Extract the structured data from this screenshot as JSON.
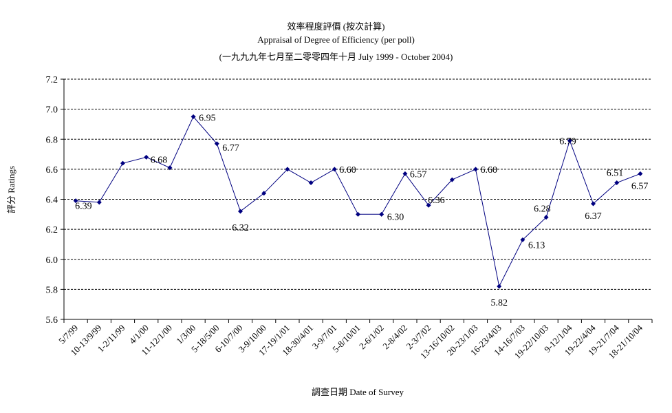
{
  "chart_data": {
    "type": "line",
    "title_zh": "效率程度評價 (按次計算)",
    "title_en": "Appraisal of Degree of Efficiency (per poll)",
    "subtitle": "(一九九九年七月至二零零四年十月 July 1999 - October 2004)",
    "xlabel": "調查日期 Date of Survey",
    "ylabel": "評分 Ratings",
    "ylim": [
      5.6,
      7.2
    ],
    "yticks": [
      "5.6",
      "5.8",
      "6.0",
      "6.2",
      "6.4",
      "6.6",
      "6.8",
      "7.0",
      "7.2"
    ],
    "grid": true,
    "line_color": "#000080",
    "categories": [
      "5/7/99",
      "10-13/9/99",
      "1-2/11/99",
      "4/1/00",
      "11-12/1/00",
      "1/3/00",
      "5-18/5/00",
      "6-10/7/00",
      "3-9/10/00",
      "17-19/1/01",
      "18-30/4/01",
      "3-9/7/01",
      "5-8/10/01",
      "2-6/1/02",
      "2-8/4/02",
      "2-3/7/02",
      "13-16/10/02",
      "20-23/1/03",
      "16-23/4/03",
      "14-16/7/03",
      "19-22/10/03",
      "9-12/1/04",
      "19-22/4/04",
      "19-21/7/04",
      "18-21/10/04"
    ],
    "values": [
      6.39,
      6.38,
      6.64,
      6.68,
      6.61,
      6.95,
      6.77,
      6.32,
      6.44,
      6.6,
      6.51,
      6.6,
      6.3,
      6.3,
      6.57,
      6.36,
      6.53,
      6.6,
      5.82,
      6.13,
      6.28,
      6.79,
      6.37,
      6.51,
      6.57
    ],
    "data_labels": [
      "6.39",
      "",
      "",
      "6.68",
      "",
      "6.95",
      "6.77",
      "6.32",
      "",
      "",
      "",
      "6.60",
      "",
      "6.30",
      "6.57",
      "6.36",
      "",
      "6.60",
      "5.82",
      "6.13",
      "6.28",
      "6.79",
      "6.37",
      "6.51",
      "6.57"
    ]
  }
}
